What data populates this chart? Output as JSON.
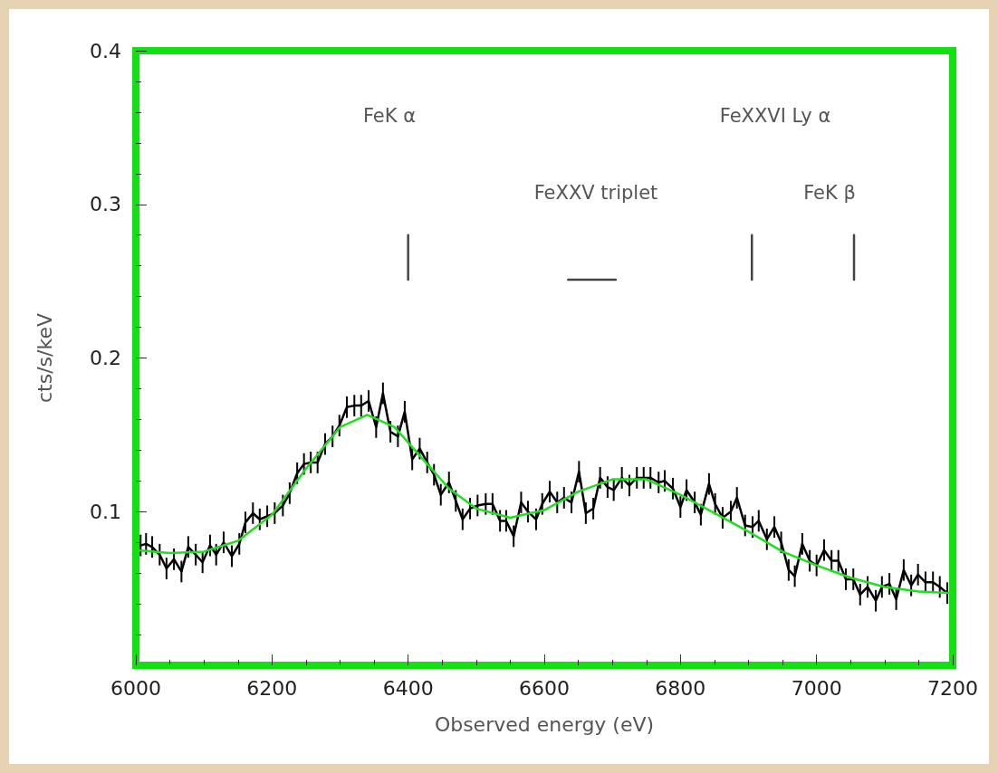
{
  "chart_data": {
    "type": "line",
    "xlabel": "Observed energy (eV)",
    "ylabel": "cts/s/keV",
    "xlim": [
      6000,
      7200
    ],
    "xticks": [
      6000,
      6200,
      6400,
      6600,
      6800,
      7000,
      7200
    ],
    "ylim": [
      0,
      0.4
    ],
    "yticks": [
      0.1,
      0.2,
      0.3,
      0.4
    ],
    "grid": false,
    "marker": "none",
    "line_style": "solid",
    "series": [
      {
        "color": "#000000",
        "x": [
          6007,
          6015,
          6024,
          6035,
          6045,
          6056,
          6067,
          6077,
          6088,
          6098,
          6109,
          6118,
          6129,
          6141,
          6152,
          6161,
          6172,
          6182,
          6193,
          6204,
          6216,
          6226,
          6237,
          6247,
          6257,
          6267,
          6278,
          6289,
          6299,
          6310,
          6321,
          6331,
          6342,
          6353,
          6363,
          6374,
          6385,
          6395,
          6406,
          6417,
          6428,
          6438,
          6448,
          6460,
          6470,
          6480,
          6491,
          6502,
          6514,
          6524,
          6535,
          6544,
          6555,
          6566,
          6576,
          6588,
          6597,
          6608,
          6619,
          6629,
          6640,
          6651,
          6661,
          6672,
          6682,
          6693,
          6702,
          6714,
          6725,
          6736,
          6746,
          6756,
          6768,
          6777,
          6789,
          6800,
          6809,
          6821,
          6830,
          6842,
          6851,
          6862,
          6874,
          6883,
          6895,
          6906,
          6915,
          6927,
          6938,
          6948,
          6959,
          6968,
          6979,
          6990,
          7000,
          7011,
          7022,
          7032,
          7043,
          7054,
          7064,
          7075,
          7087,
          7096,
          7107,
          7117,
          7128,
          7139,
          7149,
          7160,
          7171,
          7181,
          7192
        ],
        "values": [
          0.078,
          0.079,
          0.077,
          0.072,
          0.063,
          0.069,
          0.061,
          0.077,
          0.072,
          0.067,
          0.078,
          0.072,
          0.08,
          0.071,
          0.079,
          0.093,
          0.099,
          0.095,
          0.097,
          0.099,
          0.104,
          0.112,
          0.125,
          0.131,
          0.132,
          0.132,
          0.144,
          0.149,
          0.156,
          0.168,
          0.169,
          0.169,
          0.172,
          0.155,
          0.177,
          0.152,
          0.149,
          0.165,
          0.134,
          0.141,
          0.132,
          0.124,
          0.111,
          0.119,
          0.107,
          0.095,
          0.102,
          0.104,
          0.105,
          0.105,
          0.094,
          0.094,
          0.084,
          0.106,
          0.1,
          0.095,
          0.105,
          0.113,
          0.106,
          0.109,
          0.106,
          0.126,
          0.099,
          0.102,
          0.122,
          0.116,
          0.114,
          0.122,
          0.117,
          0.122,
          0.122,
          0.122,
          0.119,
          0.12,
          0.115,
          0.103,
          0.114,
          0.106,
          0.098,
          0.118,
          0.105,
          0.096,
          0.1,
          0.109,
          0.091,
          0.09,
          0.094,
          0.082,
          0.09,
          0.08,
          0.062,
          0.058,
          0.079,
          0.068,
          0.065,
          0.075,
          0.068,
          0.068,
          0.056,
          0.056,
          0.046,
          0.051,
          0.042,
          0.051,
          0.053,
          0.043,
          0.062,
          0.052,
          0.059,
          0.054,
          0.054,
          0.051,
          0.047
        ],
        "errors": [
          0.007,
          0.007,
          0.007,
          0.007,
          0.007,
          0.007,
          0.007,
          0.007,
          0.007,
          0.007,
          0.007,
          0.007,
          0.007,
          0.007,
          0.007,
          0.007,
          0.007,
          0.007,
          0.007,
          0.007,
          0.007,
          0.007,
          0.007,
          0.007,
          0.007,
          0.007,
          0.007,
          0.007,
          0.007,
          0.007,
          0.007,
          0.007,
          0.007,
          0.007,
          0.007,
          0.007,
          0.007,
          0.007,
          0.007,
          0.007,
          0.007,
          0.007,
          0.007,
          0.007,
          0.007,
          0.007,
          0.007,
          0.007,
          0.007,
          0.007,
          0.007,
          0.007,
          0.007,
          0.007,
          0.007,
          0.007,
          0.007,
          0.007,
          0.007,
          0.007,
          0.007,
          0.007,
          0.007,
          0.007,
          0.007,
          0.007,
          0.007,
          0.007,
          0.007,
          0.007,
          0.007,
          0.007,
          0.007,
          0.007,
          0.007,
          0.007,
          0.007,
          0.007,
          0.007,
          0.007,
          0.007,
          0.007,
          0.007,
          0.007,
          0.007,
          0.007,
          0.007,
          0.007,
          0.007,
          0.007,
          0.007,
          0.007,
          0.007,
          0.007,
          0.007,
          0.007,
          0.007,
          0.007,
          0.007,
          0.007,
          0.007,
          0.007,
          0.007,
          0.007,
          0.007,
          0.007,
          0.007,
          0.007,
          0.007,
          0.007,
          0.007,
          0.007,
          0.007
        ]
      },
      {
        "color": "#22dd22",
        "x": [
          6000,
          6050,
          6100,
          6150,
          6200,
          6250,
          6300,
          6340,
          6380,
          6420,
          6460,
          6500,
          6550,
          6600,
          6650,
          6700,
          6750,
          6800,
          6850,
          6900,
          6950,
          7000,
          7050,
          7100,
          7150,
          7200
        ],
        "values": [
          0.075,
          0.073,
          0.074,
          0.081,
          0.098,
          0.128,
          0.155,
          0.163,
          0.155,
          0.135,
          0.115,
          0.102,
          0.096,
          0.101,
          0.113,
          0.121,
          0.121,
          0.111,
          0.099,
          0.087,
          0.074,
          0.065,
          0.057,
          0.051,
          0.048,
          0.047
        ]
      },
      {
        "color": "#444444",
        "x": [
          6400,
          6400
        ],
        "values": [
          0.251,
          0.28
        ]
      },
      {
        "color": "#444444",
        "x": [
          6635,
          6705
        ],
        "values": [
          0.251,
          0.251
        ]
      },
      {
        "color": "#444444",
        "x": [
          6905,
          6905
        ],
        "values": [
          0.251,
          0.28
        ]
      },
      {
        "color": "#444444",
        "x": [
          7055,
          7055
        ],
        "values": [
          0.251,
          0.28
        ]
      }
    ],
    "annotations": [
      "FeK α",
      "FeXXVI Ly α",
      "FeXXV triplet",
      "FeK β"
    ]
  }
}
